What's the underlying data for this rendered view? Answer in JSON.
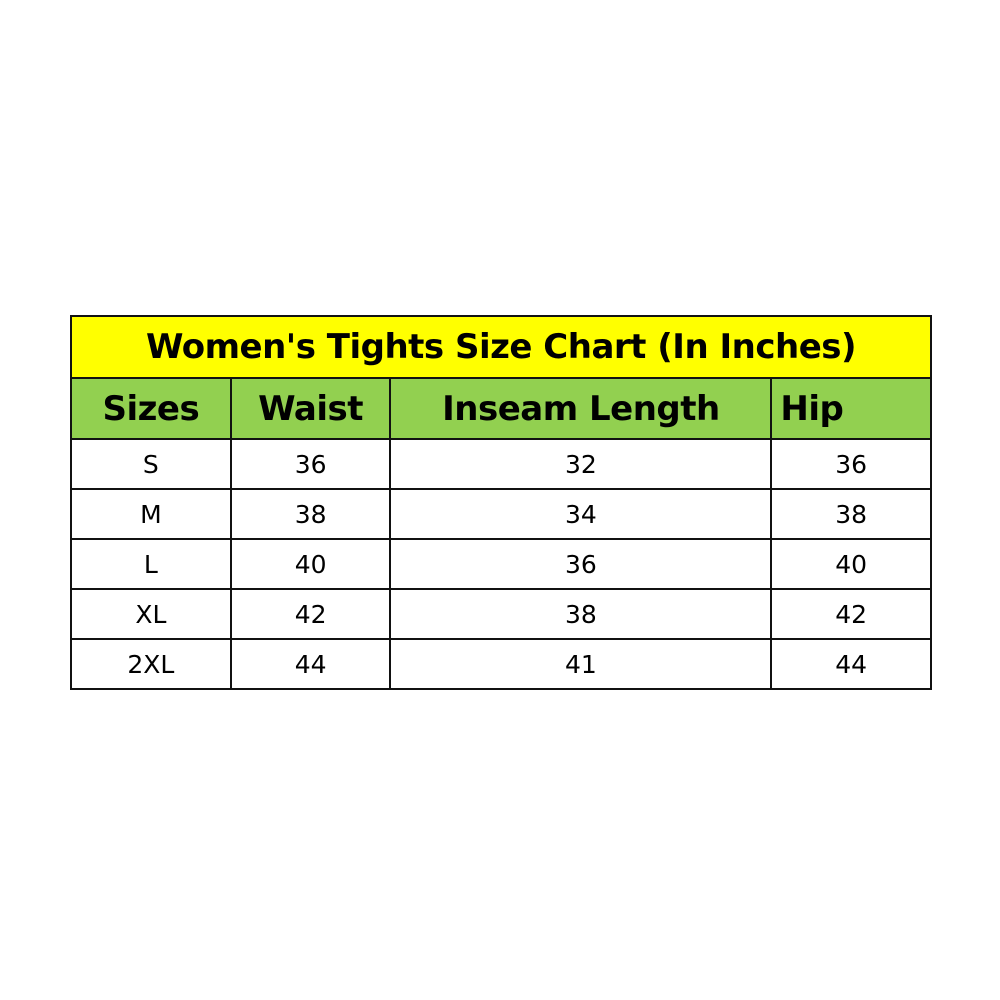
{
  "title": "Women's Tights Size Chart (In Inches)",
  "colors": {
    "title_bg": "#ffff00",
    "header_bg": "#92d050"
  },
  "headers": [
    "Sizes",
    "Waist",
    "Inseam Length",
    "Hip"
  ],
  "rows": [
    [
      "S",
      "36",
      "32",
      "36"
    ],
    [
      "M",
      "38",
      "34",
      "38"
    ],
    [
      "L",
      "40",
      "36",
      "40"
    ],
    [
      "XL",
      "42",
      "38",
      "42"
    ],
    [
      "2XL",
      "44",
      "41",
      "44"
    ]
  ]
}
